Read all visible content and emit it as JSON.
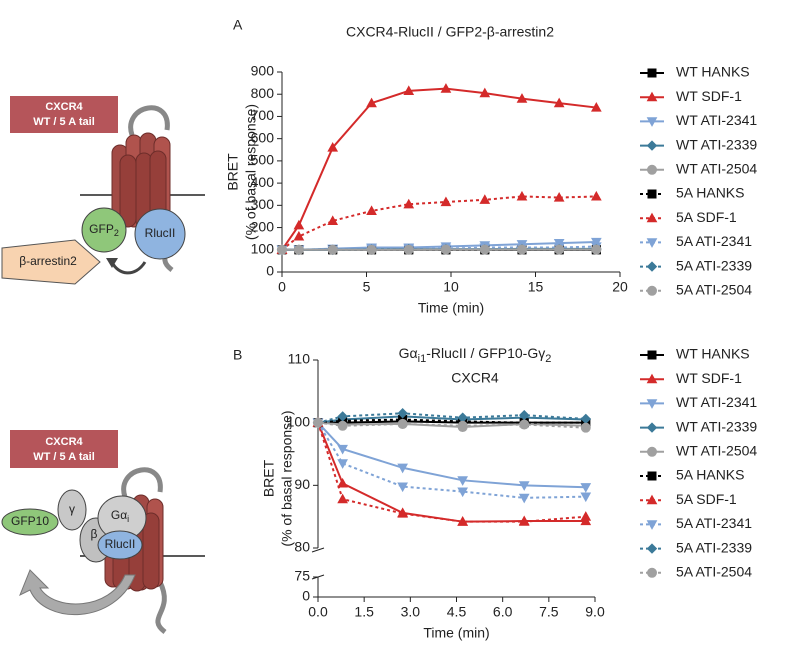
{
  "chart_data": [
    {
      "type": "line",
      "panel": "A",
      "title": "CXCR4-RlucII / GFP2-β-arrestin2",
      "xlabel": "Time (min)",
      "ylabel": "BRET",
      "ylabel2": "(% of basal response)",
      "x": [
        0,
        1,
        3,
        5.3,
        7.5,
        9.7,
        12,
        14.2,
        16.4,
        18.6
      ],
      "xlim": [
        0,
        20
      ],
      "xticks": [
        0,
        5,
        10,
        15,
        20
      ],
      "ylim": [
        0,
        900
      ],
      "yticks": [
        0,
        100,
        200,
        300,
        400,
        500,
        600,
        700,
        800,
        900
      ],
      "grid": false,
      "legend": "right",
      "series": [
        {
          "name": "WT HANKS",
          "color": "#000000",
          "dash": "solid",
          "marker": "square",
          "values": [
            100,
            100,
            100,
            100,
            100,
            100,
            100,
            100,
            100,
            100
          ]
        },
        {
          "name": "WT SDF-1",
          "color": "#d42a2a",
          "dash": "solid",
          "marker": "triangle",
          "values": [
            100,
            210,
            560,
            760,
            815,
            825,
            805,
            780,
            760,
            740
          ]
        },
        {
          "name": "WT ATI-2341",
          "color": "#7fa3d6",
          "dash": "solid",
          "marker": "triangle-down",
          "values": [
            100,
            100,
            105,
            110,
            110,
            115,
            120,
            125,
            130,
            135
          ]
        },
        {
          "name": "WT ATI-2339",
          "color": "#3c7a99",
          "dash": "solid",
          "marker": "diamond",
          "values": [
            100,
            100,
            100,
            102,
            103,
            103,
            103,
            104,
            104,
            104
          ]
        },
        {
          "name": "WT ATI-2504",
          "color": "#a0a0a0",
          "dash": "solid",
          "marker": "circle",
          "values": [
            100,
            100,
            100,
            100,
            101,
            101,
            101,
            102,
            102,
            102
          ]
        },
        {
          "name": "5A HANKS",
          "color": "#000000",
          "dash": "dotted",
          "marker": "square",
          "values": [
            100,
            100,
            100,
            100,
            100,
            100,
            100,
            100,
            100,
            100
          ]
        },
        {
          "name": "5A SDF-1",
          "color": "#d42a2a",
          "dash": "dotted",
          "marker": "triangle",
          "values": [
            100,
            160,
            230,
            275,
            305,
            315,
            325,
            340,
            335,
            340
          ]
        },
        {
          "name": "5A ATI-2341",
          "color": "#7fa3d6",
          "dash": "dotted",
          "marker": "triangle-down",
          "values": [
            100,
            100,
            100,
            105,
            105,
            105,
            110,
            110,
            110,
            115
          ]
        },
        {
          "name": "5A ATI-2339",
          "color": "#3c7a99",
          "dash": "dotted",
          "marker": "diamond",
          "values": [
            100,
            100,
            100,
            101,
            102,
            102,
            102,
            103,
            103,
            103
          ]
        },
        {
          "name": "5A ATI-2504",
          "color": "#a0a0a0",
          "dash": "dotted",
          "marker": "circle",
          "values": [
            100,
            100,
            100,
            100,
            100,
            101,
            101,
            101,
            101,
            101
          ]
        }
      ]
    },
    {
      "type": "line",
      "panel": "B",
      "title": [
        "Gα",
        "i1",
        "-RlucII / GFP10-Gγ",
        "2"
      ],
      "subtitle": "CXCR4",
      "xlabel": "Time (min)",
      "ylabel": "BRET",
      "ylabel2": "(% of basal response)",
      "x": [
        0,
        0.8,
        2.75,
        4.7,
        6.7,
        8.7
      ],
      "xlim": [
        0,
        9
      ],
      "xticks": [
        {
          "value": 0,
          "label": "0.0"
        },
        1.5,
        {
          "value": 3,
          "label": "3.0"
        },
        4.5,
        {
          "value": 6,
          "label": "6.0"
        },
        7.5,
        {
          "value": 9,
          "label": "9.0"
        }
      ],
      "ylim": [
        80,
        110
      ],
      "yticks": [
        80,
        90,
        100,
        110
      ],
      "lower_ylim": [
        0,
        75
      ],
      "lower_yticks": [
        0,
        75
      ],
      "grid": false,
      "legend": "right",
      "series": [
        {
          "name": "WT HANKS",
          "color": "#000000",
          "dash": "solid",
          "marker": "square",
          "values": [
            100,
            100,
            100.2,
            100,
            100,
            100
          ]
        },
        {
          "name": "WT SDF-1",
          "color": "#d42a2a",
          "dash": "solid",
          "marker": "triangle",
          "values": [
            100,
            90.3,
            85.6,
            84.2,
            84.3,
            84.3
          ]
        },
        {
          "name": "WT ATI-2341",
          "color": "#7fa3d6",
          "dash": "solid",
          "marker": "triangle-down",
          "values": [
            100,
            95.8,
            92.8,
            90.8,
            90,
            89.7
          ]
        },
        {
          "name": "WT ATI-2339",
          "color": "#3c7a99",
          "dash": "solid",
          "marker": "diamond",
          "values": [
            100,
            100.5,
            101,
            100.5,
            100.8,
            100.5
          ]
        },
        {
          "name": "WT ATI-2504",
          "color": "#a0a0a0",
          "dash": "solid",
          "marker": "circle",
          "values": [
            100,
            99.7,
            99.8,
            99.3,
            99.8,
            99.5
          ]
        },
        {
          "name": "5A HANKS",
          "color": "#000000",
          "dash": "dotted",
          "marker": "square",
          "values": [
            100,
            100.3,
            100.5,
            100.2,
            100,
            100
          ]
        },
        {
          "name": "5A SDF-1",
          "color": "#d42a2a",
          "dash": "dotted",
          "marker": "triangle",
          "values": [
            100,
            87.8,
            85.5,
            84.2,
            84.2,
            85
          ]
        },
        {
          "name": "5A ATI-2341",
          "color": "#7fa3d6",
          "dash": "dotted",
          "marker": "triangle-down",
          "values": [
            100,
            93.5,
            89.8,
            89,
            88,
            88.2
          ]
        },
        {
          "name": "5A ATI-2339",
          "color": "#3c7a99",
          "dash": "dotted",
          "marker": "diamond",
          "values": [
            100,
            101,
            101.5,
            100.8,
            101.2,
            100.6
          ]
        },
        {
          "name": "5A ATI-2504",
          "color": "#a0a0a0",
          "dash": "dotted",
          "marker": "circle",
          "values": [
            100,
            99.5,
            99.8,
            99.5,
            99.7,
            99.2
          ]
        }
      ]
    }
  ],
  "diagrams": [
    {
      "receptor": [
        "CXCR4",
        "WT / 5 A tail"
      ],
      "arrestin": "β-arrestin2",
      "gfp": [
        "GFP",
        "2"
      ],
      "rluc": "RlucII"
    },
    {
      "receptor": [
        "CXCR4",
        "WT / 5 A tail"
      ],
      "gfp": "GFP10",
      "gamma": "γ",
      "beta": "β",
      "galpha": [
        "Gα",
        "i"
      ],
      "rluc": "RlucII"
    }
  ]
}
